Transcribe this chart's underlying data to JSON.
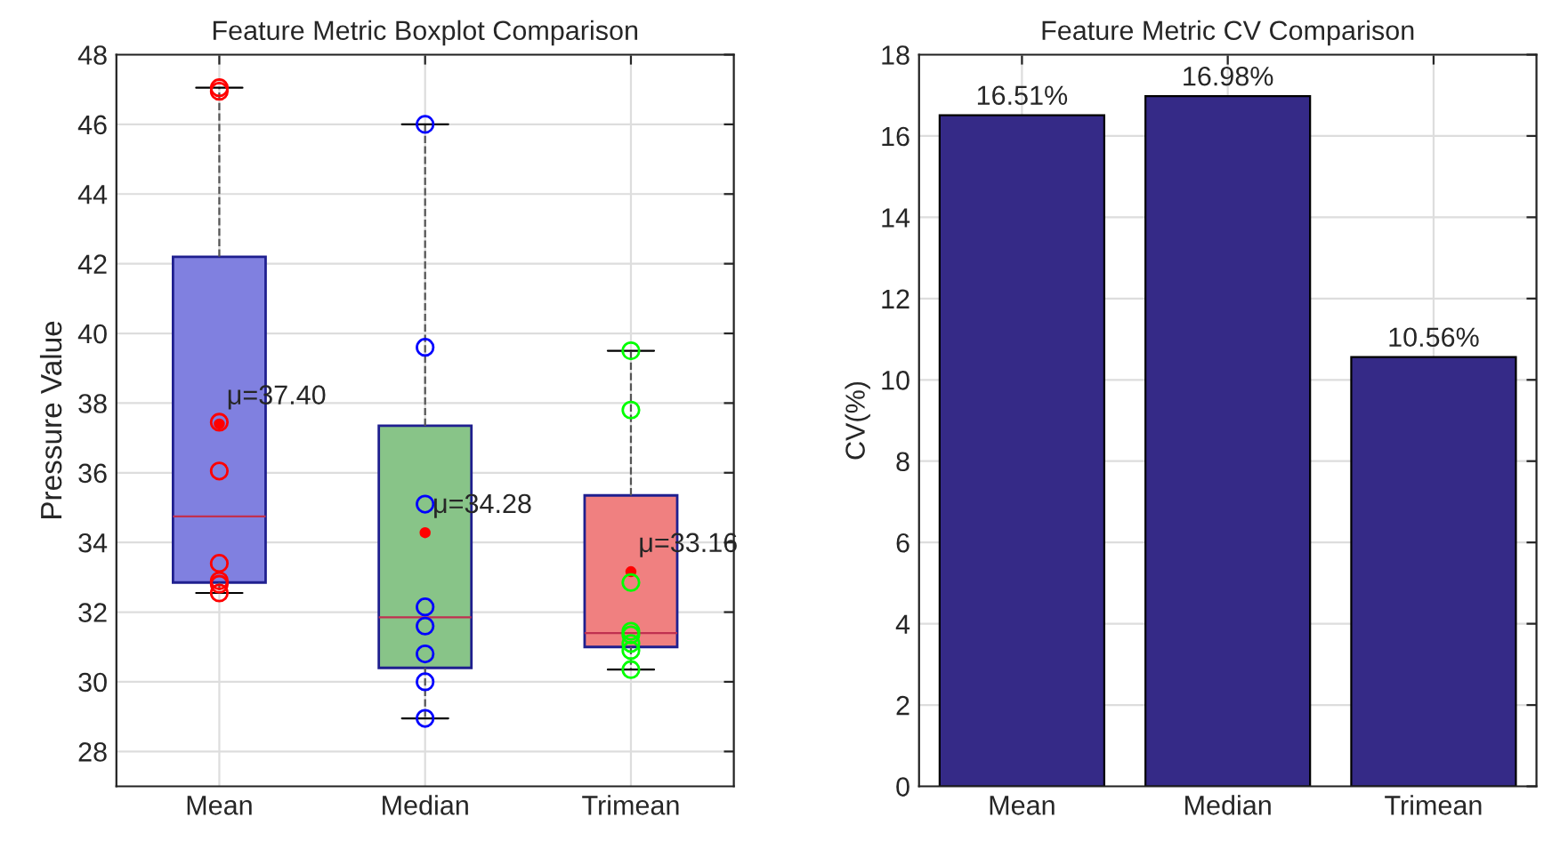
{
  "chart_data": [
    {
      "type": "box",
      "title": "Feature Metric Boxplot Comparison",
      "ylabel": "Pressure Value",
      "categories": [
        "Mean",
        "Median",
        "Trimean"
      ],
      "boxes": [
        {
          "low": 32.55,
          "q1": 32.85,
          "median": 34.75,
          "q3": 42.2,
          "high": 47.05,
          "mean": 37.4
        },
        {
          "low": 28.95,
          "q1": 30.4,
          "median": 31.85,
          "q3": 37.35,
          "high": 46.0,
          "mean": 34.28
        },
        {
          "low": 30.35,
          "q1": 31.0,
          "median": 31.4,
          "q3": 35.35,
          "high": 39.5,
          "mean": 33.16
        }
      ],
      "colors": [
        "#8080e0",
        "#88c488",
        "#f08080"
      ],
      "series": [
        {
          "type": "scatter",
          "color": "#ff0000",
          "x": [
            "Mean",
            "Mean",
            "Mean",
            "Mean",
            "Mean",
            "Mean",
            "Mean",
            "Mean"
          ],
          "values": [
            47.05,
            46.95,
            37.45,
            36.05,
            33.4,
            32.8,
            32.9,
            32.55
          ]
        },
        {
          "type": "scatter",
          "color": "#0000ff",
          "x": [
            "Median",
            "Median",
            "Median",
            "Median",
            "Median",
            "Median",
            "Median",
            "Median"
          ],
          "values": [
            46.0,
            39.6,
            35.1,
            32.15,
            31.6,
            30.8,
            30.0,
            28.95
          ]
        },
        {
          "type": "scatter",
          "color": "#00ff00",
          "x": [
            "Trimean",
            "Trimean",
            "Trimean",
            "Trimean",
            "Trimean",
            "Trimean",
            "Trimean",
            "Trimean"
          ],
          "values": [
            39.5,
            37.8,
            32.85,
            31.45,
            31.35,
            31.1,
            30.9,
            30.35
          ]
        }
      ],
      "marker": "circle",
      "annotations": [
        "μ=37.40",
        "μ=34.28",
        "μ=33.16"
      ],
      "ylim": [
        27,
        48
      ],
      "yticks": [
        28,
        30,
        32,
        34,
        36,
        38,
        40,
        42,
        44,
        46,
        48
      ],
      "grid": true
    },
    {
      "type": "bar",
      "title": "Feature Metric CV Comparison",
      "ylabel": "CV(%)",
      "categories": [
        "Mean",
        "Median",
        "Trimean"
      ],
      "values": [
        16.51,
        16.98,
        10.56
      ],
      "color": "#352a87",
      "value_labels": [
        "16.51%",
        "16.98%",
        "10.56%"
      ],
      "ylim": [
        0,
        18
      ],
      "yticks": [
        0,
        2,
        4,
        6,
        8,
        10,
        12,
        14,
        16,
        18
      ],
      "grid": true
    }
  ]
}
